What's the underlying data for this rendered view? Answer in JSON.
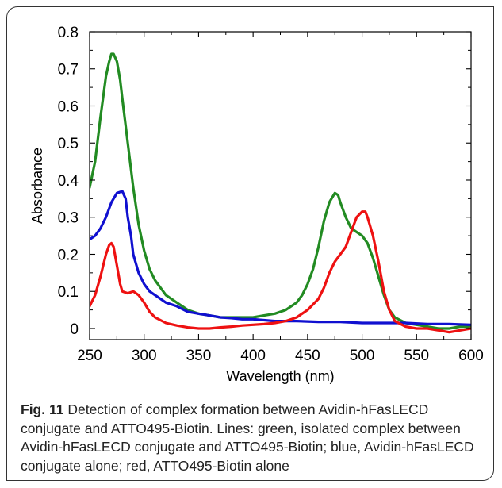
{
  "caption": {
    "label": "Fig. 11",
    "text": "Detection of complex formation between Avidin-hFasLECD conjugate and ATTO495-Biotin. Lines: green, isolated complex between Avidin-hFasLECD conjugate and ATTO495-Biotin; blue, Avidin-hFasLECD conjugate alone; red, ATTO495-Biotin alone"
  },
  "chart_data": {
    "type": "line",
    "title": "",
    "xlabel": "Wavelength (nm)",
    "ylabel": "Absorbance",
    "xlim": [
      250,
      600
    ],
    "ylim": [
      -0.03,
      0.8
    ],
    "xticks": [
      250,
      300,
      350,
      400,
      450,
      500,
      550,
      600
    ],
    "xtick_labels": [
      "250",
      "300",
      "350",
      "400",
      "450",
      "500",
      "550",
      "600"
    ],
    "yticks": [
      0,
      0.1,
      0.2,
      0.3,
      0.4,
      0.5,
      0.6,
      0.7,
      0.8
    ],
    "ytick_labels": [
      "0",
      "0.1",
      "0.2",
      "0.3",
      "0.4",
      "0.5",
      "0.6",
      "0.7",
      "0.8"
    ],
    "grid": false,
    "legend": "none",
    "series": [
      {
        "color": "#228B22",
        "x": [
          250,
          255,
          260,
          265,
          268,
          270,
          272,
          275,
          278,
          280,
          285,
          290,
          295,
          300,
          305,
          310,
          320,
          330,
          340,
          350,
          360,
          370,
          380,
          390,
          400,
          410,
          420,
          430,
          440,
          445,
          450,
          455,
          460,
          465,
          470,
          475,
          478,
          480,
          485,
          490,
          495,
          500,
          505,
          510,
          515,
          520,
          525,
          530,
          540,
          550,
          560,
          570,
          580,
          590,
          600
        ],
        "y": [
          0.38,
          0.45,
          0.57,
          0.68,
          0.72,
          0.74,
          0.74,
          0.72,
          0.67,
          0.62,
          0.5,
          0.38,
          0.28,
          0.21,
          0.16,
          0.13,
          0.09,
          0.07,
          0.05,
          0.04,
          0.035,
          0.03,
          0.03,
          0.03,
          0.03,
          0.035,
          0.04,
          0.05,
          0.07,
          0.09,
          0.12,
          0.16,
          0.22,
          0.29,
          0.34,
          0.365,
          0.36,
          0.34,
          0.3,
          0.27,
          0.26,
          0.25,
          0.23,
          0.19,
          0.14,
          0.09,
          0.05,
          0.03,
          0.015,
          0.01,
          0.005,
          0.0,
          0.0,
          0.005,
          0.005
        ]
      },
      {
        "color": "#1010D0",
        "x": [
          250,
          255,
          260,
          265,
          270,
          275,
          280,
          283,
          285,
          288,
          290,
          295,
          300,
          305,
          310,
          320,
          330,
          340,
          350,
          360,
          370,
          380,
          390,
          400,
          420,
          440,
          460,
          480,
          500,
          520,
          540,
          560,
          580,
          600
        ],
        "y": [
          0.24,
          0.25,
          0.27,
          0.3,
          0.34,
          0.365,
          0.37,
          0.35,
          0.3,
          0.25,
          0.2,
          0.15,
          0.12,
          0.1,
          0.09,
          0.07,
          0.06,
          0.045,
          0.04,
          0.035,
          0.03,
          0.028,
          0.025,
          0.025,
          0.02,
          0.02,
          0.018,
          0.018,
          0.015,
          0.015,
          0.015,
          0.012,
          0.012,
          0.01
        ]
      },
      {
        "color": "#EE1111",
        "x": [
          250,
          255,
          260,
          265,
          268,
          270,
          272,
          275,
          278,
          280,
          285,
          290,
          295,
          300,
          305,
          310,
          320,
          330,
          340,
          350,
          360,
          370,
          380,
          390,
          400,
          410,
          420,
          430,
          440,
          450,
          460,
          465,
          470,
          475,
          480,
          485,
          490,
          495,
          500,
          503,
          505,
          510,
          515,
          520,
          525,
          530,
          540,
          550,
          560,
          570,
          580,
          590,
          600
        ],
        "y": [
          0.06,
          0.09,
          0.14,
          0.2,
          0.225,
          0.23,
          0.22,
          0.17,
          0.12,
          0.1,
          0.095,
          0.1,
          0.09,
          0.07,
          0.045,
          0.03,
          0.015,
          0.008,
          0.003,
          0.0,
          0.0,
          0.003,
          0.005,
          0.008,
          0.01,
          0.012,
          0.015,
          0.02,
          0.03,
          0.05,
          0.08,
          0.11,
          0.15,
          0.18,
          0.2,
          0.22,
          0.26,
          0.3,
          0.315,
          0.315,
          0.3,
          0.25,
          0.18,
          0.1,
          0.05,
          0.02,
          0.005,
          0.0,
          0.0,
          -0.005,
          -0.01,
          -0.005,
          0.0
        ]
      }
    ]
  }
}
